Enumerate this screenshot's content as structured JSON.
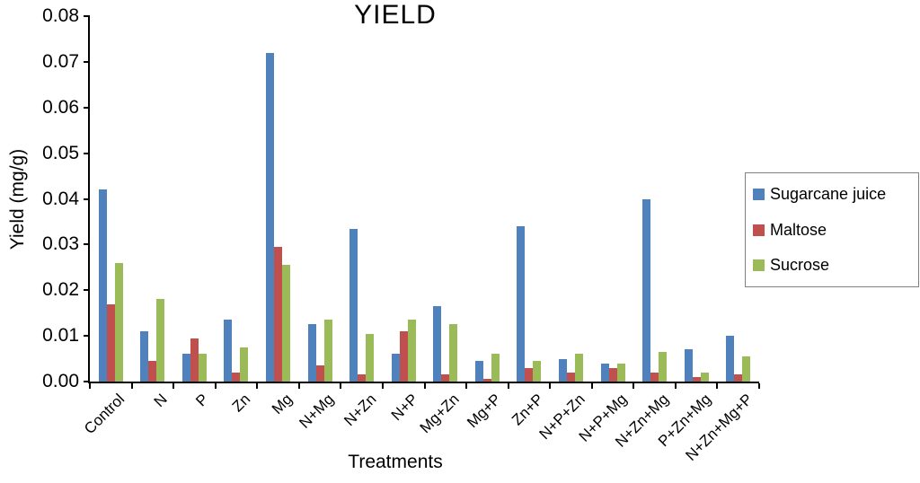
{
  "chart_data": {
    "type": "bar",
    "title": "YIELD",
    "xlabel": "Treatments",
    "ylabel": "Yield (mg/g)",
    "ylim": [
      0,
      0.08
    ],
    "ytick_step": 0.01,
    "grid": false,
    "legend_position": "right",
    "categories": [
      "Control",
      "N",
      "P",
      "Zn",
      "Mg",
      "N+Mg",
      "N+Zn",
      "N+P",
      "Mg+Zn",
      "Mg+P",
      "Zn+P",
      "N+P+Zn",
      "N+P+Mg",
      "N+Zn+Mg",
      "P+Zn+Mg",
      "N+Zn+Mg+P"
    ],
    "series": [
      {
        "name": "Sugarcane juice",
        "color": "#4f81bd",
        "values": [
          0.042,
          0.011,
          0.006,
          0.0135,
          0.072,
          0.0125,
          0.0335,
          0.006,
          0.0165,
          0.0045,
          0.034,
          0.005,
          0.004,
          0.04,
          0.007,
          0.01
        ]
      },
      {
        "name": "Maltose",
        "color": "#c0504d",
        "values": [
          0.017,
          0.0045,
          0.0095,
          0.002,
          0.0295,
          0.0035,
          0.0015,
          0.011,
          0.0015,
          0.0005,
          0.003,
          0.002,
          0.003,
          0.002,
          0.001,
          0.0015
        ]
      },
      {
        "name": "Sucrose",
        "color": "#9bbb59",
        "values": [
          0.026,
          0.018,
          0.006,
          0.0075,
          0.0255,
          0.0135,
          0.0105,
          0.0135,
          0.0125,
          0.006,
          0.0045,
          0.006,
          0.004,
          0.0065,
          0.002,
          0.0055
        ]
      }
    ]
  }
}
